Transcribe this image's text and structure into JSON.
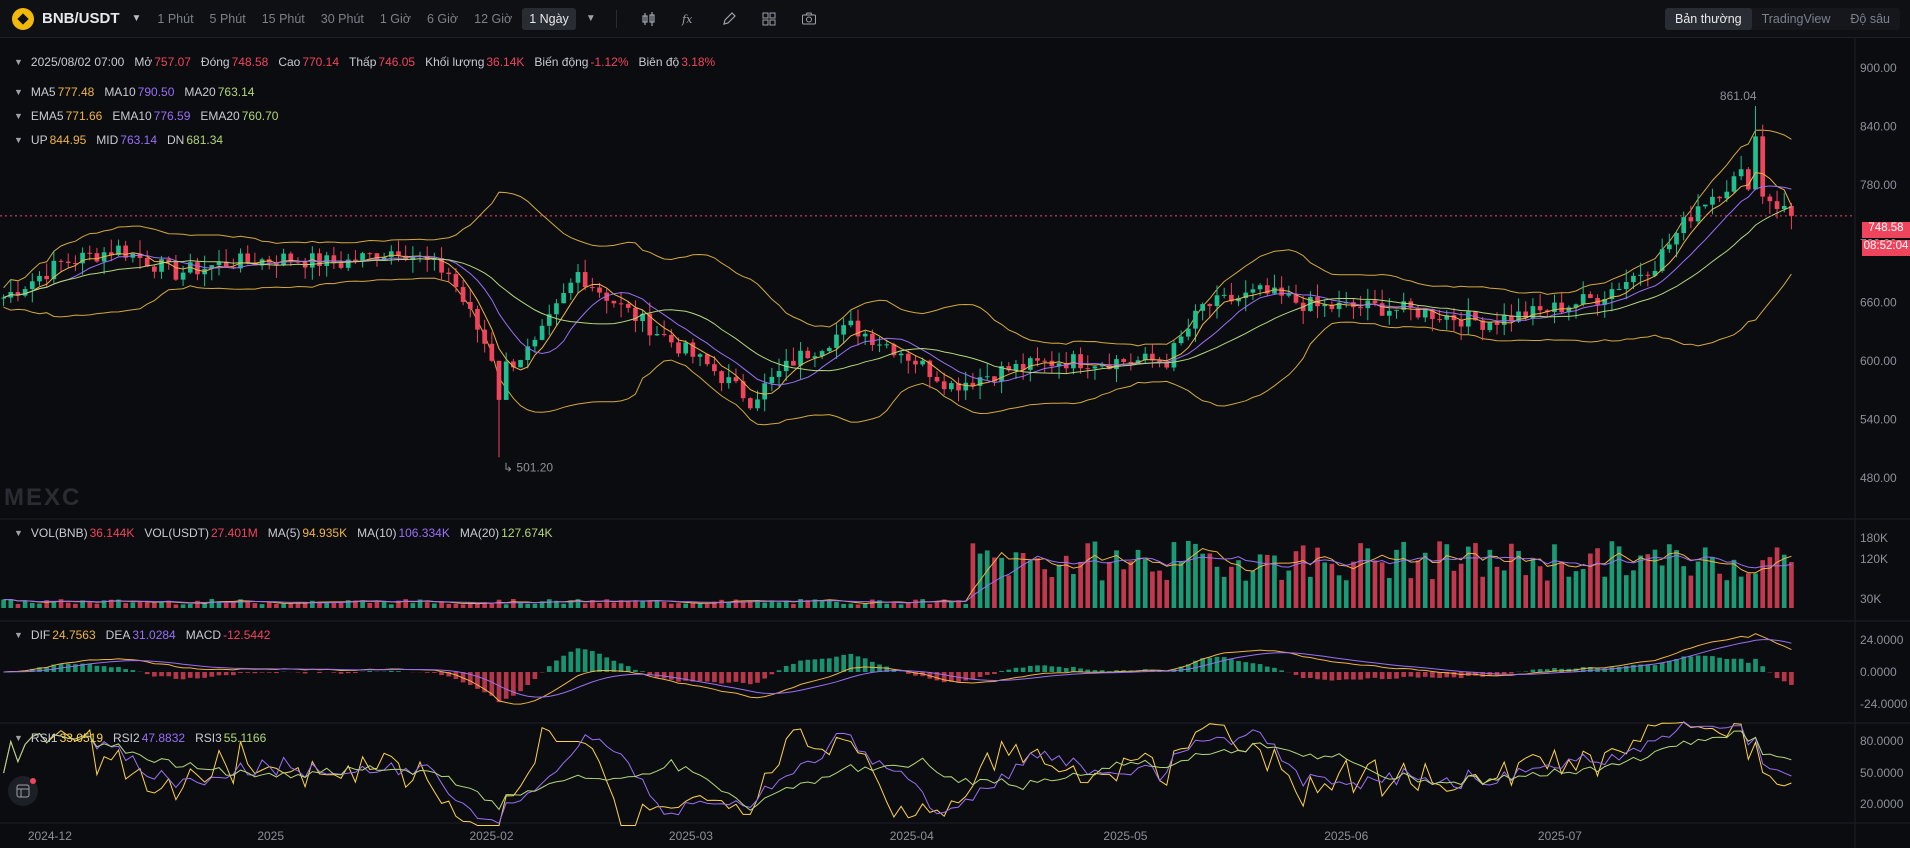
{
  "toolbar": {
    "pair": "BNB/USDT",
    "timeframes": [
      "1 Phút",
      "5 Phút",
      "15 Phút",
      "30 Phút",
      "1 Giờ",
      "6 Giờ",
      "12 Giờ"
    ],
    "active_timeframe": "1 Ngày",
    "views": [
      "Bản thường",
      "TradingView",
      "Độ sâu"
    ]
  },
  "info": {
    "date": "2025/08/02 07:00",
    "open_label": "Mở",
    "open": "757.07",
    "close_label": "Đóng",
    "close": "748.58",
    "high_label": "Cao",
    "high": "770.14",
    "low_label": "Thấp",
    "low": "746.05",
    "volume_label": "Khối lượng",
    "volume": "36.14K",
    "change_label": "Biến động",
    "change": "-1.12%",
    "amplitude_label": "Biên độ",
    "amplitude": "3.18%"
  },
  "ma": {
    "ma5_label": "MA5",
    "ma5": "777.48",
    "ma10_label": "MA10",
    "ma10": "790.50",
    "ma20_label": "MA20",
    "ma20": "763.14"
  },
  "ema": {
    "ema5_label": "EMA5",
    "ema5": "771.66",
    "ema10_label": "EMA10",
    "ema10": "776.59",
    "ema20_label": "EMA20",
    "ema20": "760.70"
  },
  "boll": {
    "up_label": "UP",
    "up": "844.95",
    "mid_label": "MID",
    "mid": "763.14",
    "dn_label": "DN",
    "dn": "681.34"
  },
  "vol": {
    "bnb_label": "VOL(BNB)",
    "bnb": "36.144K",
    "usdt_label": "VOL(USDT)",
    "usdt": "27.401M",
    "ma5_label": "MA(5)",
    "ma5": "94.935K",
    "ma10_label": "MA(10)",
    "ma10": "106.334K",
    "ma20_label": "MA(20)",
    "ma20": "127.674K"
  },
  "macd": {
    "dif_label": "DIF",
    "dif": "24.7563",
    "dea_label": "DEA",
    "dea": "31.0284",
    "macd_label": "MACD",
    "macd": "-12.5442"
  },
  "rsi": {
    "rsi1_label": "RSI1",
    "rsi1": "33.0519",
    "rsi2_label": "RSI2",
    "rsi2": "47.8832",
    "rsi3_label": "RSI3",
    "rsi3": "55.1166"
  },
  "price_axis": [
    "900.00",
    "840.00",
    "780.00",
    "720.00",
    "660.00",
    "600.00",
    "540.00",
    "480.00"
  ],
  "vol_axis": [
    "180K",
    "120K",
    "30K"
  ],
  "macd_axis": [
    "24.0000",
    "0.0000",
    "-24.0000"
  ],
  "rsi_axis": [
    "80.0000",
    "50.0000",
    "20.0000"
  ],
  "date_axis": [
    "2024-12",
    "2025",
    "2025-02",
    "2025-03",
    "2025-04",
    "2025-05",
    "2025-06",
    "2025-07"
  ],
  "annotations": {
    "high": "861.04",
    "low": "501.20"
  },
  "last_price": {
    "price": "748.58",
    "countdown": "08:52:04"
  },
  "watermark": "MEXC",
  "colors": {
    "up": "#1fbf8f",
    "down": "#f0445c",
    "ma5": "#f0b340",
    "ma10": "#9a6ff5",
    "ma20": "#b4d67a",
    "boll": "#d4a93c"
  },
  "chart_data": {
    "type": "candlestick",
    "timeframe": "1 Ngày",
    "x": [
      "2024-12",
      "2025",
      "2025-02",
      "2025-03",
      "2025-04",
      "2025-05",
      "2025-06",
      "2025-07"
    ],
    "price_ylim": [
      480,
      900
    ],
    "price_path": [
      [
        "2024-11-26",
        665
      ],
      [
        "2024-12-04",
        700
      ],
      [
        "2024-12-12",
        715
      ],
      [
        "2024-12-20",
        690
      ],
      [
        "2024-12-27",
        700
      ],
      [
        "2025-01-04",
        705
      ],
      [
        "2025-01-12",
        700
      ],
      [
        "2025-01-20",
        715
      ],
      [
        "2025-01-27",
        690
      ],
      [
        "2025-02-03",
        590
      ],
      [
        "2025-02-08",
        615
      ],
      [
        "2025-02-14",
        690
      ],
      [
        "2025-02-20",
        655
      ],
      [
        "2025-02-27",
        620
      ],
      [
        "2025-03-05",
        590
      ],
      [
        "2025-03-10",
        560
      ],
      [
        "2025-03-16",
        600
      ],
      [
        "2025-03-24",
        635
      ],
      [
        "2025-03-31",
        610
      ],
      [
        "2025-04-07",
        575
      ],
      [
        "2025-04-14",
        590
      ],
      [
        "2025-04-22",
        600
      ],
      [
        "2025-04-30",
        600
      ],
      [
        "2025-05-07",
        600
      ],
      [
        "2025-05-12",
        655
      ],
      [
        "2025-05-20",
        670
      ],
      [
        "2025-05-28",
        655
      ],
      [
        "2025-06-05",
        655
      ],
      [
        "2025-06-12",
        650
      ],
      [
        "2025-06-20",
        640
      ],
      [
        "2025-06-28",
        650
      ],
      [
        "2025-07-06",
        665
      ],
      [
        "2025-07-14",
        700
      ],
      [
        "2025-07-20",
        760
      ],
      [
        "2025-07-26",
        790
      ],
      [
        "2025-08-02",
        748.58
      ]
    ],
    "period_high": 861.04,
    "period_low": 501.2,
    "last_candle": {
      "date": "2025/08/02",
      "open": 757.07,
      "close": 748.58,
      "high": 770.14,
      "low": 746.05,
      "volume": "36.14K"
    },
    "indicators": {
      "MA5": 777.48,
      "MA10": 790.5,
      "MA20": 763.14,
      "EMA5": 771.66,
      "EMA10": 776.59,
      "EMA20": 760.7,
      "BOLL_UP": 844.95,
      "BOLL_MID": 763.14,
      "BOLL_DN": 681.34,
      "DIF": 24.7563,
      "DEA": 31.0284,
      "MACD": -12.5442,
      "RSI1": 33.0519,
      "RSI2": 47.8832,
      "RSI3": 55.1166
    }
  }
}
